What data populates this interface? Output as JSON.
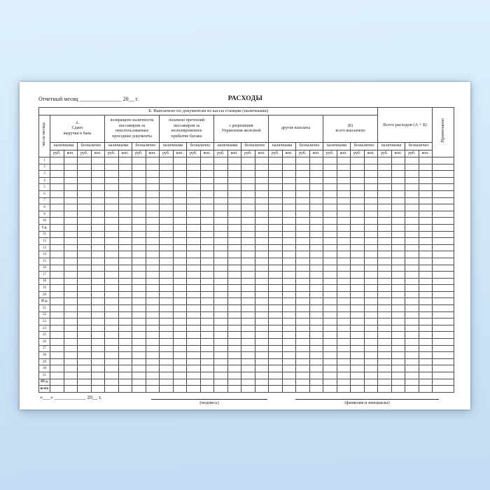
{
  "colors": {
    "background_top": "#def0fc",
    "background_bottom": "#c2dcf3",
    "paper": "#ffffff",
    "border": "#4a4a4a",
    "text": "#1a1a1a"
  },
  "page": {
    "title": "РАСХОДЫ",
    "report_month_line": "Отчетный месяц _______________ 20__ г.",
    "footer": {
      "date_line": "«___» ____________ 20__ г.",
      "signature_caption": "(подпись)",
      "name_caption": "(фамилия и инициалы)"
    }
  },
  "table": {
    "banner": "Б. Выплачено по документам из кассы станции (наличными)",
    "day_column_header": "числа месяца",
    "note_column_header": "Примечание",
    "total_group_header": "Всего расходов (А + Б)",
    "groups": [
      "А.\nСдано\nвыручки в банк",
      "возвращено наличности\nпассажирам за\nнеиспользованные\nпроездные документы",
      "оплачено претензий\nпассажирам за\nнесвоевременное\nприбытие багажа",
      "с разрешения\nУправления железной",
      "другие выплаты",
      "(Б)\nвсего выплачено"
    ],
    "cash_label": "наличными",
    "noncash_label": "безналично",
    "rub_label": "руб.",
    "kop_label": "коп.",
    "rows": [
      "1",
      "2",
      "3",
      "4",
      "5",
      "6",
      "7",
      "8",
      "9",
      "10",
      "I д.",
      "11",
      "12",
      "13",
      "14",
      "15",
      "16",
      "17",
      "18",
      "19",
      "20",
      "II д.",
      "21",
      "22",
      "23",
      "24",
      "25",
      "26",
      "27",
      "28",
      "29",
      "30",
      "31",
      "III д.",
      "всего"
    ],
    "bold_row_labels": [
      "I д.",
      "II д.",
      "III д.",
      "всего"
    ],
    "cells_per_group": 4,
    "group_count": 6
  }
}
